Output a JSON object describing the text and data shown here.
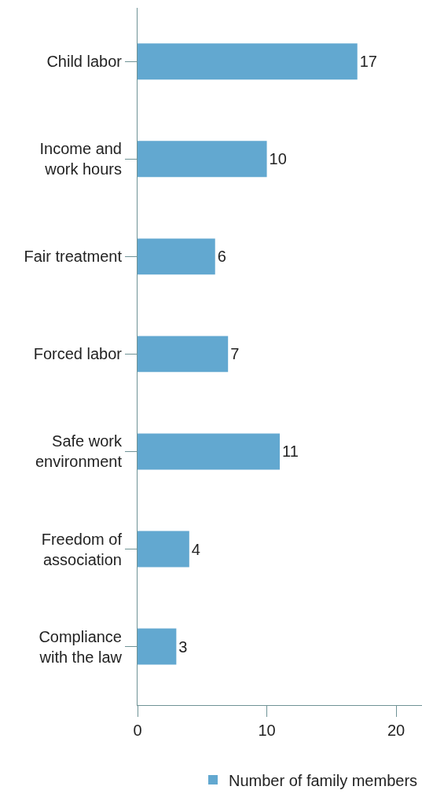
{
  "chart_data": {
    "type": "bar",
    "orientation": "horizontal",
    "categories": [
      "Child labor",
      "Income and\nwork hours",
      "Fair treatment",
      "Forced labor",
      "Safe work\nenvironment",
      "Freedom of\nassociation",
      "Compliance\nwith the law"
    ],
    "series": [
      {
        "name": "Number of family members",
        "color": "#62a8d0",
        "values": [
          17,
          10,
          6,
          7,
          11,
          4,
          3
        ]
      }
    ],
    "xlim": [
      0,
      22
    ],
    "xticks": [
      0,
      10,
      20
    ],
    "data_labels": true,
    "legend": "bottom"
  }
}
